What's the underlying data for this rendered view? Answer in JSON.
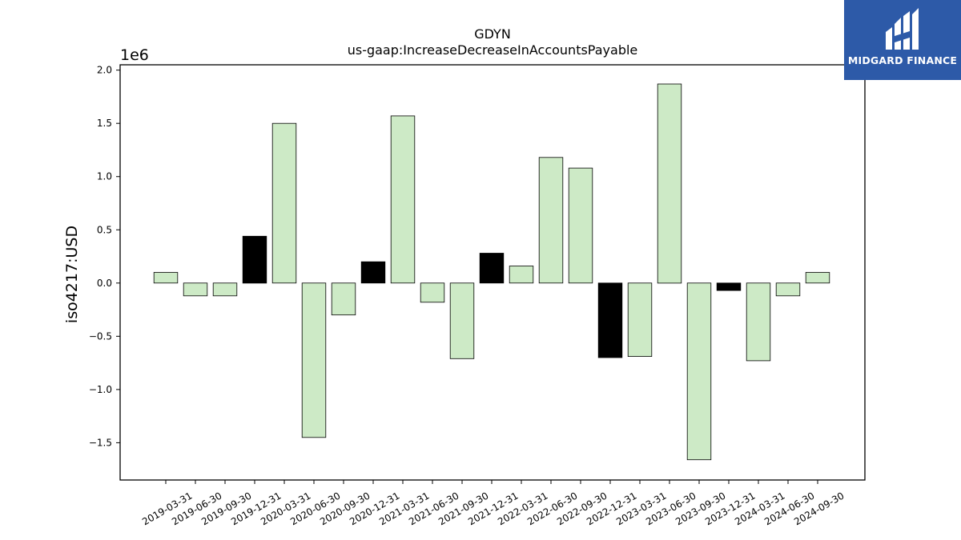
{
  "chart_data": {
    "type": "bar",
    "title": "GDYN",
    "subtitle": "us-gaap:IncreaseDecreaseInAccountsPayable",
    "ylabel": "iso4217:USD",
    "xlabel": "",
    "offset_label": "1e6",
    "ylim": [
      -1.85,
      2.05
    ],
    "yticks": [
      -1.5,
      -1.0,
      -0.5,
      0.0,
      0.5,
      1.0,
      1.5,
      2.0
    ],
    "ytick_labels": [
      "−1.5",
      "−1.0",
      "−0.5",
      "0.0",
      "0.5",
      "1.0",
      "1.5",
      "2.0"
    ],
    "grid": false,
    "categories": [
      "2019-03-31",
      "2019-06-30",
      "2019-09-30",
      "2019-12-31",
      "2020-03-31",
      "2020-06-30",
      "2020-09-30",
      "2020-12-31",
      "2021-03-31",
      "2021-06-30",
      "2021-09-30",
      "2021-12-31",
      "2022-03-31",
      "2022-06-30",
      "2022-09-30",
      "2022-12-31",
      "2023-03-31",
      "2023-06-30",
      "2023-09-30",
      "2023-12-31",
      "2024-03-31",
      "2024-06-30",
      "2024-09-30"
    ],
    "values": [
      0.1,
      -0.12,
      -0.12,
      0.44,
      1.5,
      -1.45,
      -0.3,
      0.2,
      1.57,
      -0.18,
      -0.71,
      0.28,
      0.16,
      1.18,
      1.08,
      -0.7,
      -0.69,
      1.87,
      -1.66,
      -0.07,
      -0.73,
      -0.12,
      0.1
    ],
    "highlight": [
      false,
      false,
      false,
      true,
      false,
      false,
      false,
      true,
      false,
      false,
      false,
      true,
      false,
      false,
      false,
      true,
      false,
      false,
      false,
      true,
      false,
      false,
      false
    ],
    "colors": {
      "bar": "#cdeac6",
      "highlight": "#000000",
      "edge": "#000000"
    }
  },
  "logo": {
    "text": "MIDGARD FINANCE",
    "background": "#2d5aa8",
    "icon": "midgard-logo-icon"
  }
}
